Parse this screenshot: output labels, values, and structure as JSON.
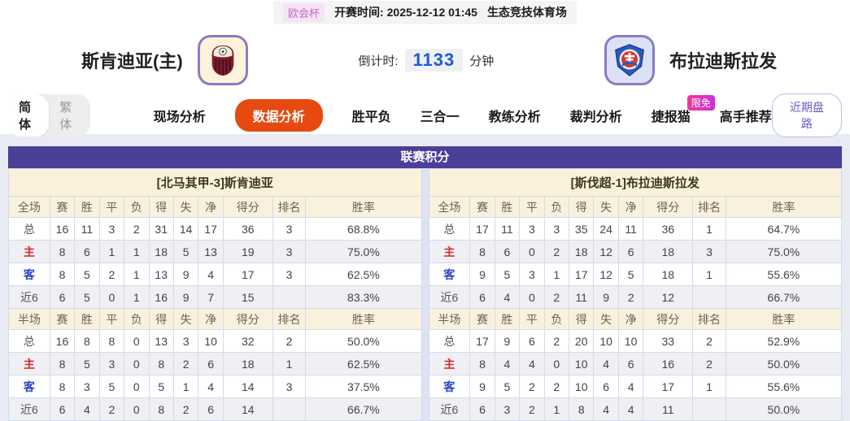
{
  "top_bar": {
    "league_badge": "欧会杯",
    "kickoff_label": "开赛时间:",
    "kickoff_time": "2025-12-12 01:45",
    "venue": "生态竞技体育场"
  },
  "header": {
    "home_team": "斯肯迪亚(主)",
    "away_team": "布拉迪斯拉发",
    "countdown_label": "倒计时:",
    "countdown_value": "1133",
    "countdown_unit": "分钟"
  },
  "nav": {
    "lang_simplified": "简体",
    "lang_traditional": "繁体",
    "tabs": [
      {
        "label": "现场分析",
        "active": false
      },
      {
        "label": "数据分析",
        "active": true
      },
      {
        "label": "胜平负",
        "active": false
      },
      {
        "label": "三合一",
        "active": false
      },
      {
        "label": "教练分析",
        "active": false
      },
      {
        "label": "裁判分析",
        "active": false
      },
      {
        "label": "捷报猫",
        "active": false,
        "badge": "限免"
      },
      {
        "label": "高手推荐",
        "active": false
      }
    ],
    "recent_trend_button": "近期盘路"
  },
  "standings": {
    "title": "联赛积分",
    "columns_full": [
      "全场",
      "赛",
      "胜",
      "平",
      "负",
      "得",
      "失",
      "净",
      "得分",
      "排名",
      "胜率"
    ],
    "columns_half": [
      "半场",
      "赛",
      "胜",
      "平",
      "负",
      "得",
      "失",
      "净",
      "得分",
      "排名",
      "胜率"
    ],
    "home": {
      "team_header": "[北马其甲-3]斯肯迪亚",
      "full": [
        [
          "总",
          "16",
          "11",
          "3",
          "2",
          "31",
          "14",
          "17",
          "36",
          "3",
          "68.8%"
        ],
        [
          "主",
          "8",
          "6",
          "1",
          "1",
          "18",
          "5",
          "13",
          "19",
          "3",
          "75.0%"
        ],
        [
          "客",
          "8",
          "5",
          "2",
          "1",
          "13",
          "9",
          "4",
          "17",
          "3",
          "62.5%"
        ],
        [
          "近6",
          "6",
          "5",
          "0",
          "1",
          "16",
          "9",
          "7",
          "15",
          "",
          "83.3%"
        ]
      ],
      "half": [
        [
          "总",
          "16",
          "8",
          "8",
          "0",
          "13",
          "3",
          "10",
          "32",
          "2",
          "50.0%"
        ],
        [
          "主",
          "8",
          "5",
          "3",
          "0",
          "8",
          "2",
          "6",
          "18",
          "1",
          "62.5%"
        ],
        [
          "客",
          "8",
          "3",
          "5",
          "0",
          "5",
          "1",
          "4",
          "14",
          "3",
          "37.5%"
        ],
        [
          "近6",
          "6",
          "4",
          "2",
          "0",
          "8",
          "2",
          "6",
          "14",
          "",
          "66.7%"
        ]
      ]
    },
    "away": {
      "team_header": "[斯伐超-1]布拉迪斯拉发",
      "full": [
        [
          "总",
          "17",
          "11",
          "3",
          "3",
          "35",
          "24",
          "11",
          "36",
          "1",
          "64.7%"
        ],
        [
          "主",
          "8",
          "6",
          "0",
          "2",
          "18",
          "12",
          "6",
          "18",
          "3",
          "75.0%"
        ],
        [
          "客",
          "9",
          "5",
          "3",
          "1",
          "17",
          "12",
          "5",
          "18",
          "1",
          "55.6%"
        ],
        [
          "近6",
          "6",
          "4",
          "0",
          "2",
          "11",
          "9",
          "2",
          "12",
          "",
          "66.7%"
        ]
      ],
      "half": [
        [
          "总",
          "17",
          "9",
          "6",
          "2",
          "20",
          "10",
          "10",
          "33",
          "2",
          "52.9%"
        ],
        [
          "主",
          "8",
          "4",
          "4",
          "0",
          "10",
          "4",
          "6",
          "16",
          "2",
          "50.0%"
        ],
        [
          "客",
          "9",
          "5",
          "2",
          "2",
          "10",
          "6",
          "4",
          "17",
          "1",
          "55.6%"
        ],
        [
          "近6",
          "6",
          "3",
          "2",
          "1",
          "8",
          "4",
          "4",
          "11",
          "",
          "50.0%"
        ]
      ]
    }
  },
  "colors": {
    "accent_orange": "#e64a10",
    "header_purple": "#4b3f98",
    "cream": "#faf1dc",
    "page_bg": "#e9ebf4",
    "border_blue": "#cfdcec",
    "home_red": "#cc2b2b",
    "away_blue": "#2b43cc",
    "countdown_blue": "#1d5bd8"
  }
}
